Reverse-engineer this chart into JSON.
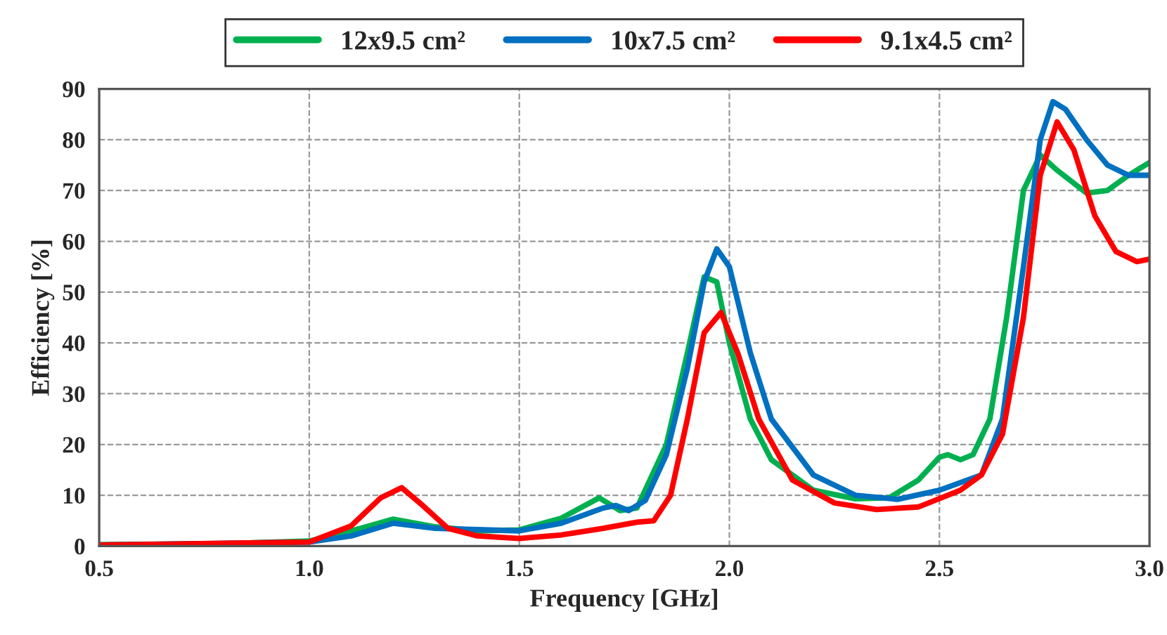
{
  "chart_data": {
    "type": "line",
    "xlabel": "Frequency [GHz]",
    "ylabel": "Efficiency [%]",
    "xlim": [
      0.5,
      3.0
    ],
    "xticks": [
      {
        "value": 0.5,
        "label": "0.5"
      },
      {
        "value": 1.0,
        "label": "1.0"
      },
      {
        "value": 1.5,
        "label": "1.5"
      },
      {
        "value": 2.0,
        "label": "2.0"
      },
      {
        "value": 2.5,
        "label": "2.5"
      },
      {
        "value": 3.0,
        "label": "3.0"
      }
    ],
    "ylim": [
      0,
      90
    ],
    "yticks": [
      0,
      10,
      20,
      30,
      40,
      50,
      60,
      70,
      80,
      90
    ],
    "grid": true,
    "legend": "top",
    "line_style": "solid",
    "series": [
      {
        "name": "12x9.5 cm²",
        "color": "#00b050",
        "x": [
          0.5,
          0.8,
          1.0,
          1.1,
          1.2,
          1.3,
          1.4,
          1.5,
          1.6,
          1.69,
          1.74,
          1.78,
          1.85,
          1.9,
          1.94,
          1.97,
          2.0,
          2.05,
          2.1,
          2.2,
          2.3,
          2.38,
          2.45,
          2.5,
          2.52,
          2.55,
          2.58,
          2.62,
          2.66,
          2.7,
          2.74,
          2.78,
          2.85,
          2.9,
          2.95,
          3.0
        ],
        "values": [
          0.3,
          0.5,
          1,
          3,
          5.3,
          3.8,
          3,
          3.2,
          5.5,
          9.5,
          7,
          7.5,
          20,
          38,
          53,
          52,
          40,
          25,
          17,
          11,
          9.3,
          9.5,
          13,
          17.5,
          18,
          17,
          18,
          25,
          45,
          70,
          77,
          74,
          69.5,
          70,
          73,
          75.5
        ]
      },
      {
        "name": "10x7.5 cm²",
        "color": "#0070c0",
        "x": [
          0.5,
          1.0,
          1.1,
          1.2,
          1.3,
          1.5,
          1.6,
          1.7,
          1.73,
          1.76,
          1.8,
          1.85,
          1.9,
          1.94,
          1.97,
          2.0,
          2.05,
          2.1,
          2.2,
          2.3,
          2.4,
          2.5,
          2.6,
          2.65,
          2.7,
          2.74,
          2.77,
          2.8,
          2.85,
          2.9,
          2.95,
          3.0
        ],
        "values": [
          0.2,
          0.8,
          2,
          4.5,
          3.5,
          3,
          4.5,
          7.5,
          8,
          7,
          9,
          18,
          35,
          52,
          58.5,
          55,
          38,
          25,
          14,
          10,
          9.2,
          11,
          14,
          25,
          55,
          80,
          87.5,
          86,
          80,
          75,
          73,
          73
        ]
      },
      {
        "name": "9.1x4.5 cm²",
        "color": "#ff0000",
        "x": [
          0.5,
          1.0,
          1.1,
          1.17,
          1.22,
          1.27,
          1.33,
          1.4,
          1.5,
          1.6,
          1.7,
          1.78,
          1.82,
          1.86,
          1.9,
          1.94,
          1.98,
          2.02,
          2.07,
          2.15,
          2.25,
          2.35,
          2.45,
          2.55,
          2.6,
          2.65,
          2.7,
          2.74,
          2.78,
          2.82,
          2.87,
          2.92,
          2.97,
          3.0
        ],
        "values": [
          0.2,
          0.8,
          4,
          9.5,
          11.5,
          8,
          3.5,
          2,
          1.5,
          2.2,
          3.5,
          4.7,
          5,
          10,
          25,
          42,
          46,
          38,
          25,
          13,
          8.5,
          7.2,
          7.7,
          11,
          14,
          22,
          45,
          73,
          83.5,
          78,
          65,
          58,
          56,
          56.5
        ]
      }
    ]
  }
}
